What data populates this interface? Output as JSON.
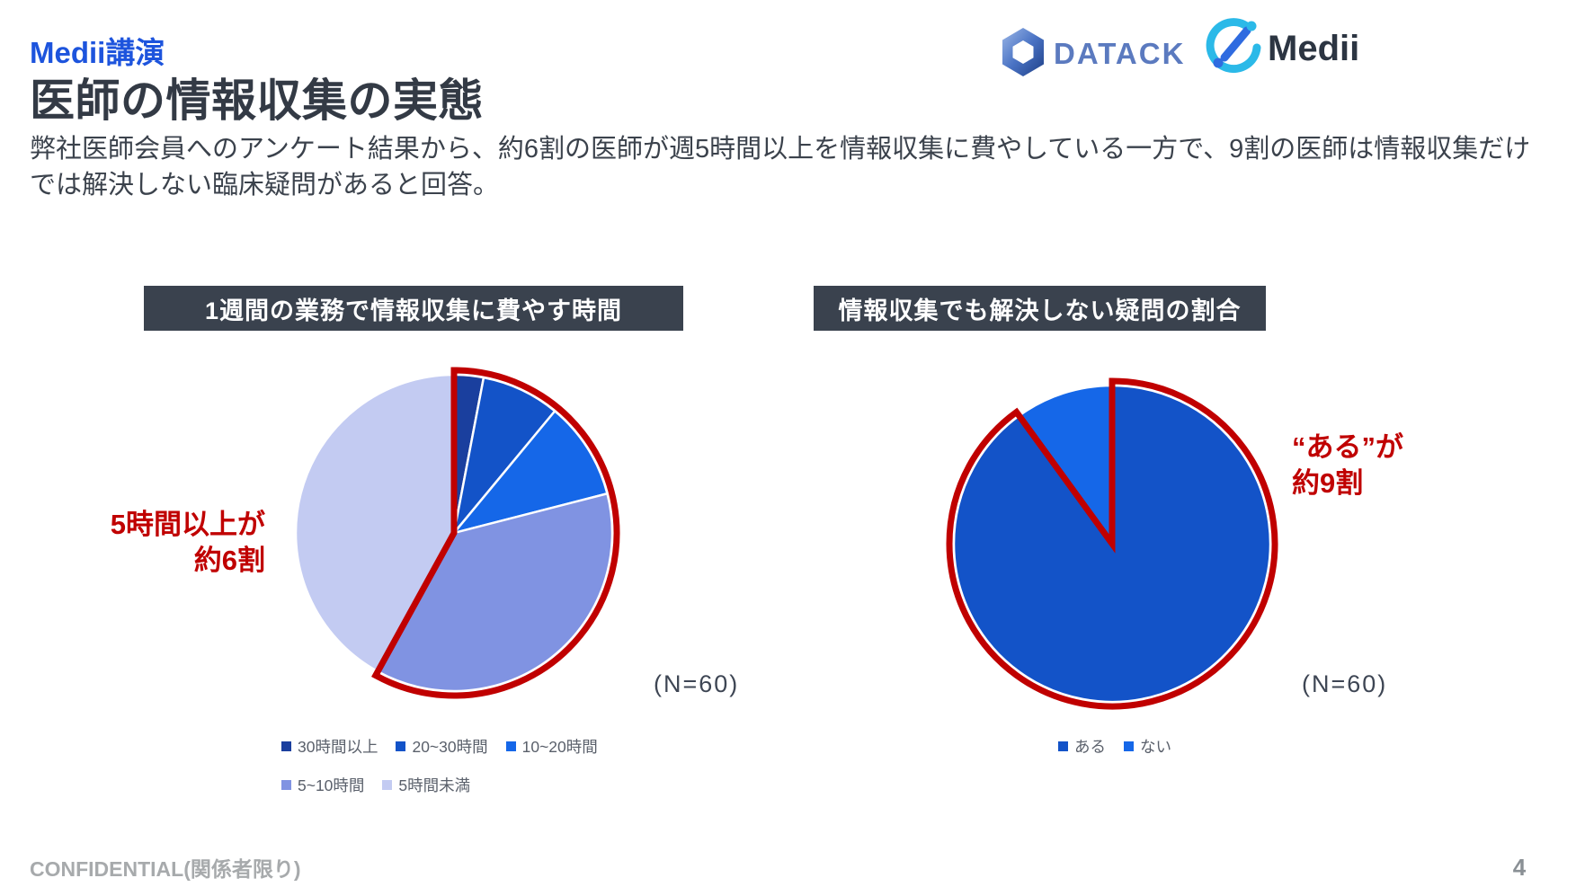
{
  "slide": {
    "kicker": "Medii講演",
    "title": "医師の情報収集の実態",
    "lead": "弊社医師会員へのアンケート結果から、約6割の医師が週5時間以上を情報収集に費やしている一方で、9割の医師は情報収集だけでは解決しない臨床疑問があると回答。",
    "logos": {
      "datack_text": "DATACK",
      "medii_text": "Medii"
    },
    "theme": {
      "kicker_blue": "#1d54dd",
      "panel_header_bg": "#3a424e",
      "highlight_red": "#c00000",
      "title_color": "#333a45"
    },
    "footer": {
      "confidential": "CONFIDENTIAL(関係者限り)",
      "page_number": "4"
    }
  },
  "chart_data": [
    {
      "type": "pie",
      "title": "1週間の業務で情報収集に費やす時間",
      "categories": [
        "30時間以上",
        "20~30時間",
        "10~20時間",
        "5~10時間",
        "5時間未満"
      ],
      "values": [
        3,
        8,
        10,
        37,
        42
      ],
      "values_unit": "%",
      "values_estimated": true,
      "colors": [
        "#1a3f9e",
        "#1353c8",
        "#1567e8",
        "#8093e2",
        "#c3cbf2"
      ],
      "start_angle_deg": 0,
      "clockwise": true,
      "legend_position": "bottom",
      "sample_size_label": "(N=60)",
      "highlight": {
        "covers": [
          "30時間以上",
          "20~30時間",
          "10~20時間",
          "5~10時間"
        ],
        "color": "#c00000",
        "label_line1": "5時間以上が",
        "label_line2": "約6割"
      }
    },
    {
      "type": "pie",
      "title": "情報収集でも解決しない疑問の割合",
      "categories": [
        "ある",
        "ない"
      ],
      "values": [
        90,
        10
      ],
      "values_unit": "%",
      "values_estimated": true,
      "colors": [
        "#1353c8",
        "#1567e8"
      ],
      "start_angle_deg": 0,
      "clockwise": true,
      "legend_position": "bottom",
      "sample_size_label": "(N=60)",
      "highlight": {
        "covers": [
          "ある"
        ],
        "color": "#c00000",
        "label_line1": "“ある”が",
        "label_line2": "約9割"
      }
    }
  ]
}
